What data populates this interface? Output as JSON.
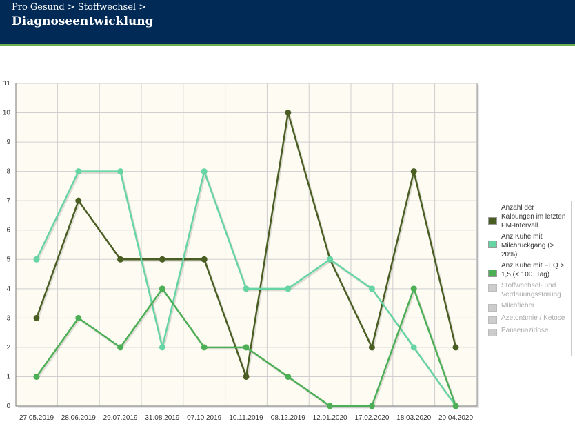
{
  "header": {
    "breadcrumb": "Pro Gesund > Stoffwechsel >",
    "title": "Diagnoseentwicklung"
  },
  "chart_data": {
    "type": "line",
    "categories": [
      "27.05.2019",
      "28.06.2019",
      "29.07.2019",
      "31.08.2019",
      "07.10.2019",
      "10.11.2019",
      "08.12.2019",
      "12.01.2020",
      "17.02.2020",
      "18.03.2020",
      "20.04.2020"
    ],
    "ylim": [
      0,
      11
    ],
    "yticks": [
      0,
      1,
      2,
      3,
      4,
      5,
      6,
      7,
      8,
      9,
      10,
      11
    ],
    "grid": true,
    "legend_position": "right",
    "series": [
      {
        "name": "Anzahl der Kalbungen im letzten PM-Intervall",
        "color": "#4a5e23",
        "values": [
          3,
          7,
          5,
          5,
          5,
          1,
          10,
          5,
          2,
          8,
          2
        ]
      },
      {
        "name": "Anz Kühe mit Milchrückgang (> 20%)",
        "color": "#66d4a3",
        "values": [
          5,
          8,
          8,
          2,
          8,
          4,
          4,
          5,
          4,
          2,
          0
        ]
      },
      {
        "name": "Anz Kühe mit FEQ > 1,5 (< 100. Tag)",
        "color": "#4caf55",
        "values": [
          1,
          3,
          2,
          4,
          2,
          2,
          1,
          0,
          0,
          4,
          0
        ]
      }
    ],
    "hidden_series": [
      "Stoffwechsel- und Verdauungsstörung",
      "Milchfieber",
      "Azetonämie / Ketose",
      "Pansenazidose"
    ],
    "disabled_color": "#cccccc",
    "plot_background": "#fdfbf2"
  }
}
